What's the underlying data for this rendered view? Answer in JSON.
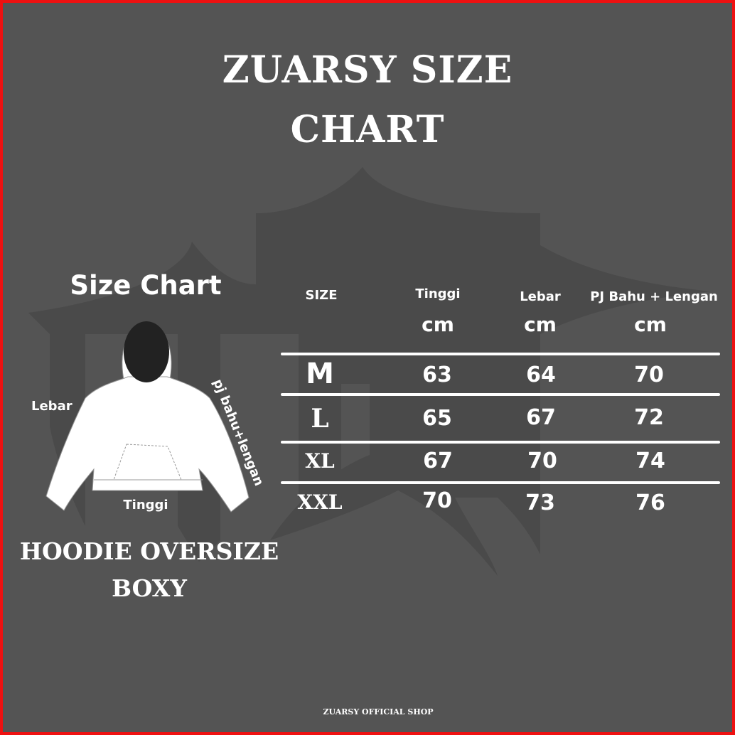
{
  "title": {
    "line1": "ZUARSY SIZE",
    "line2": "CHART"
  },
  "left": {
    "heading": "Size Chart",
    "labels": {
      "lebar": "Lebar",
      "tinggi": "Tinggi",
      "pj": "pj bahu+lengan"
    },
    "product_line1": "HOODIE OVERSIZE",
    "product_line2": "BOXY",
    "illustration": "hoodie-icon"
  },
  "table": {
    "headers": [
      "SIZE",
      "Tinggi",
      "Lebar",
      "PJ Bahu + Lengan"
    ],
    "units": [
      "",
      "cm",
      "cm",
      "cm"
    ],
    "rows": [
      [
        "M",
        "63",
        "64",
        "70"
      ],
      [
        "L",
        "65",
        "67",
        "72"
      ],
      [
        "XL",
        "67",
        "70",
        "74"
      ],
      [
        "XXL",
        "70",
        "73",
        "76"
      ]
    ]
  },
  "footer": "ZUARSY OFFICIAL SHOP",
  "colors": {
    "background": "#545454",
    "border": "#ee1111",
    "text": "#ffffff"
  }
}
